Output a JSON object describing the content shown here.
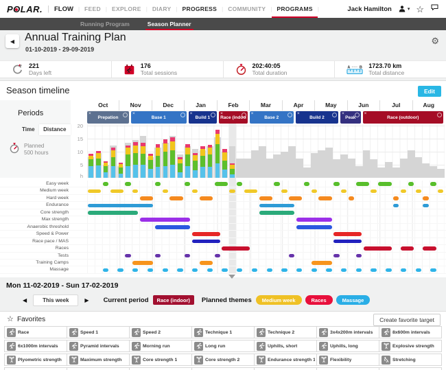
{
  "topnav": {
    "logo_p": "P",
    "logo_o": "O",
    "logo_rest": "LAR",
    "logo_dot": ".",
    "primary": "FLOW",
    "items": [
      {
        "label": "FEED"
      },
      {
        "label": "EXPLORE"
      },
      {
        "label": "DIARY"
      },
      {
        "label": "PROGRESS",
        "emphasis": true
      },
      {
        "label": "COMMUNITY"
      },
      {
        "label": "PROGRAMS",
        "emphasis": true,
        "active": true
      }
    ],
    "user_name": "Jack Hamilton"
  },
  "subnav": {
    "items": [
      {
        "label": "Running Program",
        "active": false
      },
      {
        "label": "Season Planner",
        "active": true
      }
    ]
  },
  "header": {
    "title": "Annual Training Plan",
    "date_range": "01-10-2019 - 29-09-2019"
  },
  "stats": [
    {
      "value": "221",
      "label": "Days left",
      "icon": "days-left-icon"
    },
    {
      "value": "176",
      "label": "Total sessions",
      "icon": "calendar-runner-icon"
    },
    {
      "value": "202:40:05",
      "label": "Total duration",
      "icon": "stopwatch-icon"
    },
    {
      "value": "1723.70 km",
      "label": "Total distance",
      "icon": "ruler-icon",
      "letter_a": "A",
      "letter_b": "B"
    }
  ],
  "season": {
    "title": "Season timeline",
    "edit_label": "Edit",
    "months": [
      "Oct",
      "Nov",
      "Dec",
      "Jan",
      "Feb",
      "Mar",
      "Apr",
      "May",
      "Jun",
      "Jul",
      "Aug"
    ],
    "periods_panel": {
      "title": "Periods",
      "tabs": [
        {
          "label": "Time",
          "active": true
        },
        {
          "label": "Distance",
          "active": false
        }
      ],
      "planned_label": "Planned",
      "planned_value": "500 hours",
      "planned_icon": "stopwatch-icon"
    },
    "periods": [
      {
        "label": "Prepation",
        "start": 0,
        "end": 5.8,
        "color": "#5d7190"
      },
      {
        "label": "Base 1",
        "start": 5.9,
        "end": 13.5,
        "color": "#3474c5"
      },
      {
        "label": "Build 1",
        "start": 13.6,
        "end": 17.6,
        "color": "#17338e"
      },
      {
        "label": "Race (indoor)",
        "start": 17.7,
        "end": 21.7,
        "color": "#a50d26"
      },
      {
        "label": "Base 2",
        "start": 21.8,
        "end": 27.9,
        "color": "#3474c5"
      },
      {
        "label": "Build 2",
        "start": 28.0,
        "end": 33.9,
        "color": "#17338e"
      },
      {
        "label": "Peak",
        "start": 34.0,
        "end": 36.9,
        "color": "#34307f"
      },
      {
        "label": "Race (outdoor)",
        "start": 37.0,
        "end": 48,
        "color": "#a50d26"
      }
    ],
    "current_week": 19,
    "chart_data": {
      "type": "bar",
      "stacked": true,
      "x_unit": "training weeks (Oct-Aug)",
      "weeks": 48,
      "ylabel": "h",
      "yticks": [
        20,
        15,
        10,
        5
      ],
      "grid": true,
      "actual_segments": {
        "labels": [
          "easy",
          "moderate",
          "hard",
          "very hard"
        ],
        "colors": [
          "#56c2ea",
          "#5dbf2c",
          "#f2c51c",
          "#e93a6e"
        ],
        "values": [
          [
            4.5,
            2.5,
            1.5,
            0.8
          ],
          [
            4.8,
            2.7,
            2.0,
            0.8
          ],
          [
            2.0,
            2.5,
            1.2,
            0.5
          ],
          [
            4.5,
            3.5,
            2.5,
            1.0
          ],
          [
            1.5,
            2.5,
            1.2,
            0.5
          ],
          [
            4.5,
            4.5,
            2.5,
            1.0
          ],
          [
            5.0,
            4.5,
            2.8,
            1.5
          ],
          [
            5.0,
            4.2,
            2.8,
            1.5
          ],
          [
            3.5,
            3.3,
            1.7,
            0.8
          ],
          [
            4.2,
            4.3,
            3.0,
            1.3
          ],
          [
            4.5,
            5.5,
            3.2,
            1.5
          ],
          [
            5.0,
            5.5,
            3.5,
            1.6
          ],
          [
            2.0,
            3.5,
            1.7,
            0.8
          ],
          [
            4.5,
            4.5,
            2.6,
            1.4
          ],
          [
            3.0,
            3.6,
            2.1,
            0.9
          ],
          [
            4.2,
            4.2,
            2.6,
            1.2
          ],
          [
            4.3,
            4.6,
            2.7,
            1.1
          ],
          [
            5.6,
            7.2,
            4.0,
            1.6
          ],
          [
            3.1,
            3.6,
            3.0,
            1.3
          ],
          [
            1.2,
            2.3,
            1.4,
            0.7
          ]
        ]
      },
      "planned_color": "#d5d5d5",
      "planned": [
        8,
        9.5,
        5,
        12.5,
        4.5,
        13.5,
        14.5,
        16,
        8,
        11.5,
        13.5,
        16,
        9,
        12,
        11,
        10.5,
        12,
        15.5,
        10,
        12,
        7.5,
        7.5,
        10.5,
        12,
        7.5,
        9,
        10,
        12,
        7.5,
        4,
        9.5,
        10.5,
        11.5,
        7,
        9,
        7.5,
        4.5,
        10.5,
        7,
        4,
        6,
        4,
        7.5,
        10.5,
        8,
        5.5,
        4.5,
        3.5
      ]
    },
    "themes": [
      {
        "label": "Easy week",
        "color": "#58be2b",
        "segments": [
          [
            2,
            3
          ],
          [
            5,
            6
          ],
          [
            9,
            10
          ],
          [
            13,
            14
          ],
          [
            17,
            19
          ],
          [
            20,
            21
          ],
          [
            25,
            26
          ],
          [
            29,
            30
          ],
          [
            33,
            34
          ],
          [
            36,
            38
          ],
          [
            39,
            41
          ],
          [
            43,
            44
          ],
          [
            46,
            47
          ]
        ]
      },
      {
        "label": "Medium week",
        "color": "#f0c929",
        "segments": [
          [
            0,
            2
          ],
          [
            3,
            5
          ],
          [
            6,
            7
          ],
          [
            10,
            11
          ],
          [
            14,
            15
          ],
          [
            19,
            20
          ],
          [
            21,
            23
          ],
          [
            26,
            27
          ],
          [
            30,
            31
          ],
          [
            34,
            35
          ],
          [
            38,
            39
          ],
          [
            42,
            43
          ],
          [
            44,
            45
          ],
          [
            47,
            48
          ]
        ]
      },
      {
        "label": "Hard week",
        "color": "#f58a1f",
        "segments": [
          [
            7,
            9
          ],
          [
            11,
            13
          ],
          [
            15,
            17
          ],
          [
            23,
            25
          ],
          [
            27,
            29
          ],
          [
            31,
            33
          ],
          [
            35,
            36
          ],
          [
            41,
            42
          ],
          [
            45,
            46
          ]
        ]
      },
      {
        "label": "Endurance",
        "color": "#2e9bd6",
        "segments": [
          [
            0,
            9
          ],
          [
            23,
            28
          ],
          [
            41,
            42
          ],
          [
            45,
            46
          ]
        ]
      },
      {
        "label": "Core strength",
        "color": "#2baa7a",
        "segments": [
          [
            0,
            7
          ],
          [
            23,
            28
          ]
        ]
      },
      {
        "label": "Max strength",
        "color": "#9b30e8",
        "segments": [
          [
            7,
            14
          ],
          [
            28,
            33
          ]
        ]
      },
      {
        "label": "Anaerobic threshold",
        "color": "#2b58e0",
        "segments": [
          [
            9,
            14
          ],
          [
            28,
            33
          ]
        ]
      },
      {
        "label": "Speed & Power",
        "color": "#e62626",
        "segments": [
          [
            14,
            18
          ],
          [
            33,
            37
          ]
        ]
      },
      {
        "label": "Race pace / MAS",
        "color": "#2121be",
        "segments": [
          [
            14,
            18
          ],
          [
            33,
            37
          ]
        ]
      },
      {
        "label": "Races",
        "color": "#c8102e",
        "segments": [
          [
            18,
            22
          ],
          [
            37,
            41
          ],
          [
            42,
            44
          ],
          [
            45,
            47
          ]
        ]
      },
      {
        "label": "Tests",
        "color": "#6633aa",
        "segments": [
          [
            5,
            6
          ],
          [
            9,
            10
          ],
          [
            13,
            14
          ],
          [
            17,
            18
          ],
          [
            27,
            28
          ],
          [
            33,
            34
          ],
          [
            36,
            37
          ]
        ]
      },
      {
        "label": "Training Camps",
        "color": "#f7941d",
        "segments": [
          [
            6,
            9
          ],
          [
            15,
            17
          ],
          [
            30,
            33
          ]
        ]
      },
      {
        "label": "Massage",
        "color": "#2fb4e8",
        "segments": [
          [
            2,
            3
          ],
          [
            4,
            5
          ],
          [
            6,
            7
          ],
          [
            8,
            9
          ],
          [
            10,
            11
          ],
          [
            12,
            13
          ],
          [
            14,
            15
          ],
          [
            16,
            17
          ],
          [
            18,
            19
          ],
          [
            20,
            21
          ],
          [
            22,
            23
          ],
          [
            24,
            25
          ],
          [
            26,
            27
          ],
          [
            28,
            29
          ],
          [
            30,
            31
          ],
          [
            32,
            33
          ],
          [
            34,
            35
          ],
          [
            36,
            37
          ],
          [
            38,
            39
          ],
          [
            40,
            41
          ],
          [
            42,
            43
          ],
          [
            44,
            45
          ],
          [
            46,
            47
          ]
        ]
      }
    ]
  },
  "week_info": {
    "title": "Mon 11-02-2019 - Sun 17-02-2019",
    "nav_label": "This week",
    "current_period_label": "Current period",
    "current_period": {
      "label": "Race (indoor)",
      "color": "#a21030"
    },
    "planned_themes_label": "Planned themes",
    "planned_themes": [
      {
        "label": "Medium week",
        "color": "#efc125"
      },
      {
        "label": "Races",
        "color": "#e8103c"
      },
      {
        "label": "Massage",
        "color": "#2aaee6"
      }
    ]
  },
  "favorites": {
    "title": "Favorites",
    "create_label": "Create favorite target",
    "items": [
      {
        "label": "Race",
        "icon": "run"
      },
      {
        "label": "Speed 1",
        "icon": "run"
      },
      {
        "label": "Speed 2",
        "icon": "run"
      },
      {
        "label": "Technique 1",
        "icon": "run"
      },
      {
        "label": "Technique 2",
        "icon": "run"
      },
      {
        "label": "3x4x200m intervals",
        "icon": "run"
      },
      {
        "label": "8x600m intervals",
        "icon": "run"
      },
      {
        "label": "6x1000m intervals",
        "icon": "run"
      },
      {
        "label": "Pyramid intervals",
        "icon": "run"
      },
      {
        "label": "Morning run",
        "icon": "run"
      },
      {
        "label": "Long run",
        "icon": "run"
      },
      {
        "label": "Uphills, short",
        "icon": "run"
      },
      {
        "label": "Uphills, long",
        "icon": "run"
      },
      {
        "label": "Explosive strength",
        "icon": "lift"
      },
      {
        "label": "Plyometric strength",
        "icon": "lift"
      },
      {
        "label": "Maximum strength",
        "icon": "lift"
      },
      {
        "label": "Core strength 1",
        "icon": "lift"
      },
      {
        "label": "Core strength 2",
        "icon": "lift"
      },
      {
        "label": "Endurance strength 1",
        "icon": "lift"
      },
      {
        "label": "Flexibility",
        "icon": "lift"
      },
      {
        "label": "Stretching",
        "icon": "stretch"
      }
    ]
  }
}
